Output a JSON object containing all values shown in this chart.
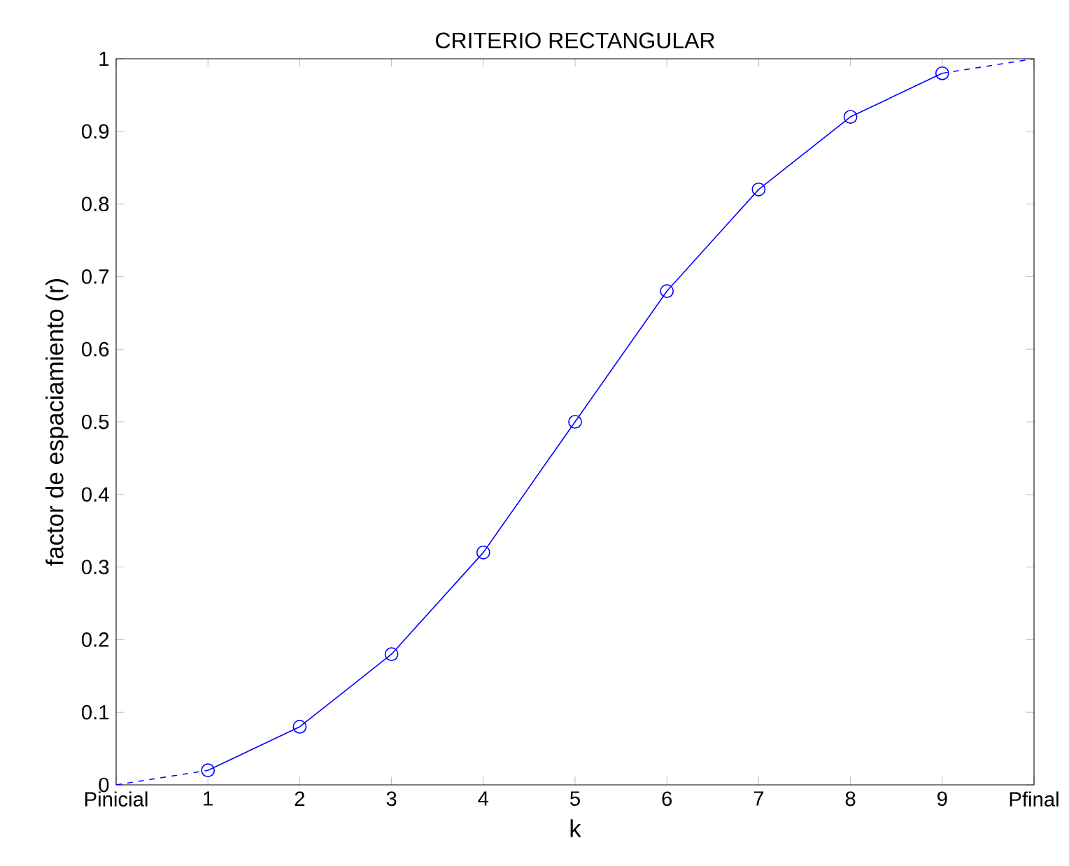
{
  "chart_data": {
    "type": "line",
    "title": "CRITERIO RECTANGULAR",
    "xlabel": "k",
    "ylabel": "factor de espaciamiento (r)",
    "xlim": [
      0,
      10
    ],
    "ylim": [
      0,
      1
    ],
    "xticks": [
      {
        "value": 0,
        "label": "Pinicial"
      },
      1,
      2,
      3,
      4,
      5,
      6,
      7,
      8,
      9,
      {
        "value": 10,
        "label": "Pfinal"
      }
    ],
    "yticks": [
      0,
      0.1,
      0.2,
      0.3,
      0.4,
      0.5,
      0.6,
      0.7,
      0.8,
      0.9,
      1
    ],
    "grid": false,
    "series": [
      {
        "color": "#0000ff",
        "marker": "circle",
        "line_style": "solid",
        "x": [
          1,
          2,
          3,
          4,
          5,
          6,
          7,
          8,
          9
        ],
        "values": [
          0.02,
          0.08,
          0.18,
          0.32,
          0.5,
          0.68,
          0.82,
          0.92,
          0.98
        ]
      },
      {
        "color": "#0000ff",
        "marker": "none",
        "line_style": "dashed",
        "x": [
          0,
          1
        ],
        "values": [
          0,
          0.02
        ]
      },
      {
        "color": "#0000ff",
        "marker": "none",
        "line_style": "dashed",
        "x": [
          9,
          10
        ],
        "values": [
          0.98,
          1
        ]
      }
    ]
  }
}
